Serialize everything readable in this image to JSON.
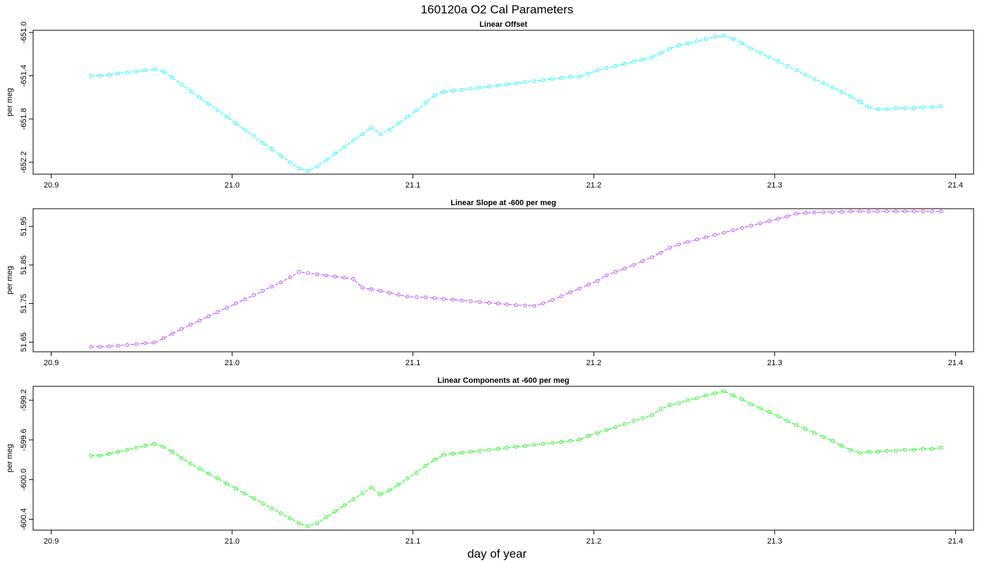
{
  "figure": {
    "title": "160120a   O2 Cal Parameters",
    "xlabel": "day of year"
  },
  "chart_data": [
    {
      "type": "line",
      "title": "Linear Offset",
      "ylabel": "per meg",
      "color": "#00ffff",
      "xlim": [
        20.89,
        21.41
      ],
      "ylim": [
        -652.31,
        -650.98
      ],
      "xticks": [
        "20.9",
        "21.0",
        "21.1",
        "21.2",
        "21.3",
        "21.4"
      ],
      "yticks": [
        "-651.0",
        "-651.4",
        "-651.8",
        "-652.2"
      ],
      "series": [
        {
          "x": [
            20.922,
            20.927,
            20.932,
            20.937,
            20.942,
            20.947,
            20.952,
            20.957,
            20.962,
            20.967,
            20.972,
            20.977,
            20.982,
            20.987,
            20.992,
            20.997,
            21.002,
            21.007,
            21.012,
            21.017,
            21.022,
            21.027,
            21.032,
            21.037,
            21.042,
            21.047,
            21.052,
            21.057,
            21.062,
            21.067,
            21.072,
            21.077,
            21.082,
            21.087,
            21.092,
            21.097,
            21.102,
            21.107,
            21.112,
            21.117,
            21.122,
            21.127,
            21.132,
            21.137,
            21.142,
            21.147,
            21.152,
            21.157,
            21.162,
            21.167,
            21.172,
            21.177,
            21.182,
            21.187,
            21.192,
            21.197,
            21.202,
            21.207,
            21.212,
            21.217,
            21.222,
            21.227,
            21.232,
            21.237,
            21.242,
            21.247,
            21.252,
            21.257,
            21.262,
            21.267,
            21.272,
            21.277,
            21.282,
            21.287,
            21.292,
            21.297,
            21.302,
            21.307,
            21.312,
            21.317,
            21.322,
            21.327,
            21.332,
            21.337,
            21.342,
            21.347,
            21.352,
            21.357,
            21.362,
            21.367,
            21.372,
            21.377,
            21.382,
            21.387,
            21.392
          ],
          "y": [
            -651.4,
            -651.4,
            -651.39,
            -651.38,
            -651.37,
            -651.36,
            -651.35,
            -651.34,
            -651.36,
            -651.42,
            -651.48,
            -651.54,
            -651.6,
            -651.66,
            -651.72,
            -651.78,
            -651.84,
            -651.9,
            -651.96,
            -652.02,
            -652.08,
            -652.14,
            -652.2,
            -652.26,
            -652.28,
            -652.24,
            -652.18,
            -652.12,
            -652.06,
            -652.0,
            -651.94,
            -651.88,
            -651.94,
            -651.9,
            -651.84,
            -651.78,
            -651.72,
            -651.65,
            -651.58,
            -651.55,
            -651.54,
            -651.53,
            -651.52,
            -651.51,
            -651.5,
            -651.49,
            -651.48,
            -651.47,
            -651.46,
            -651.45,
            -651.44,
            -651.43,
            -651.42,
            -651.41,
            -651.41,
            -651.38,
            -651.35,
            -651.33,
            -651.31,
            -651.29,
            -651.27,
            -651.25,
            -651.23,
            -651.19,
            -651.15,
            -651.12,
            -651.1,
            -651.08,
            -651.06,
            -651.04,
            -651.03,
            -651.06,
            -651.1,
            -651.15,
            -651.19,
            -651.23,
            -651.27,
            -651.31,
            -651.35,
            -651.39,
            -651.43,
            -651.47,
            -651.51,
            -651.55,
            -651.59,
            -651.64,
            -651.69,
            -651.71,
            -651.71,
            -651.7,
            -651.7,
            -651.7,
            -651.69,
            -651.69,
            -651.68
          ]
        }
      ]
    },
    {
      "type": "line",
      "title": "Linear Slope at -600 per meg",
      "ylabel": "per meg",
      "color": "#c040ff",
      "xlim": [
        20.89,
        21.41
      ],
      "ylim": [
        51.625,
        51.996
      ],
      "xticks": [
        "20.9",
        "21.0",
        "21.1",
        "21.2",
        "21.3",
        "21.4"
      ],
      "yticks": [
        "51.95",
        "51.85",
        "51.75",
        "51.65"
      ],
      "series": [
        {
          "x": [
            20.922,
            20.927,
            20.932,
            20.937,
            20.942,
            20.947,
            20.952,
            20.957,
            20.962,
            20.967,
            20.972,
            20.977,
            20.982,
            20.987,
            20.992,
            20.997,
            21.002,
            21.007,
            21.012,
            21.017,
            21.022,
            21.027,
            21.032,
            21.037,
            21.042,
            21.047,
            21.052,
            21.057,
            21.062,
            21.067,
            21.072,
            21.077,
            21.082,
            21.087,
            21.092,
            21.097,
            21.102,
            21.107,
            21.112,
            21.117,
            21.122,
            21.127,
            21.132,
            21.137,
            21.142,
            21.147,
            21.152,
            21.157,
            21.162,
            21.167,
            21.172,
            21.177,
            21.182,
            21.187,
            21.192,
            21.197,
            21.202,
            21.207,
            21.212,
            21.217,
            21.222,
            21.227,
            21.232,
            21.237,
            21.242,
            21.247,
            21.252,
            21.257,
            21.262,
            21.267,
            21.272,
            21.277,
            21.282,
            21.287,
            21.292,
            21.297,
            21.302,
            21.307,
            21.312,
            21.317,
            21.322,
            21.327,
            21.332,
            21.337,
            21.342,
            21.347,
            21.352,
            21.357,
            21.362,
            21.367,
            21.372,
            21.377,
            21.382,
            21.387,
            21.392
          ],
          "y": [
            51.638,
            51.638,
            51.639,
            51.641,
            51.643,
            51.645,
            51.647,
            51.649,
            51.66,
            51.672,
            51.684,
            51.695,
            51.706,
            51.717,
            51.728,
            51.739,
            51.75,
            51.761,
            51.772,
            51.783,
            51.794,
            51.805,
            51.818,
            51.832,
            51.829,
            51.826,
            51.823,
            51.82,
            51.817,
            51.814,
            51.791,
            51.787,
            51.783,
            51.778,
            51.773,
            51.768,
            51.767,
            51.766,
            51.764,
            51.762,
            51.76,
            51.758,
            51.756,
            51.754,
            51.752,
            51.75,
            51.748,
            51.746,
            51.745,
            51.744,
            51.751,
            51.759,
            51.769,
            51.779,
            51.789,
            51.799,
            51.809,
            51.823,
            51.832,
            51.841,
            51.85,
            51.86,
            51.87,
            51.882,
            51.895,
            51.903,
            51.91,
            51.916,
            51.922,
            51.928,
            51.934,
            51.94,
            51.946,
            51.952,
            51.958,
            51.964,
            51.97,
            51.976,
            51.983,
            51.985,
            51.986,
            51.987,
            51.987,
            51.988,
            51.989,
            51.989,
            51.989,
            51.989,
            51.989,
            51.989,
            51.989,
            51.989,
            51.989,
            51.989,
            51.989
          ]
        }
      ]
    },
    {
      "type": "line",
      "title": "Linear Components at -600 per meg",
      "ylabel": "per meg",
      "color": "#00ff00",
      "xlim": [
        20.89,
        21.41
      ],
      "ylim": [
        -600.51,
        -599.06
      ],
      "xticks": [
        "20.9",
        "21.0",
        "21.1",
        "21.2",
        "21.3",
        "21.4"
      ],
      "yticks": [
        "-599.2",
        "-599.6",
        "-600.0",
        "-600.4"
      ],
      "series": [
        {
          "x": [
            20.922,
            20.927,
            20.932,
            20.937,
            20.942,
            20.947,
            20.952,
            20.957,
            20.962,
            20.967,
            20.972,
            20.977,
            20.982,
            20.987,
            20.992,
            20.997,
            21.002,
            21.007,
            21.012,
            21.017,
            21.022,
            21.027,
            21.032,
            21.037,
            21.042,
            21.047,
            21.052,
            21.057,
            21.062,
            21.067,
            21.072,
            21.077,
            21.082,
            21.087,
            21.092,
            21.097,
            21.102,
            21.107,
            21.112,
            21.117,
            21.122,
            21.127,
            21.132,
            21.137,
            21.142,
            21.147,
            21.152,
            21.157,
            21.162,
            21.167,
            21.172,
            21.177,
            21.182,
            21.187,
            21.192,
            21.197,
            21.202,
            21.207,
            21.212,
            21.217,
            21.222,
            21.227,
            21.232,
            21.237,
            21.242,
            21.247,
            21.252,
            21.257,
            21.262,
            21.267,
            21.272,
            21.277,
            21.282,
            21.287,
            21.292,
            21.297,
            21.302,
            21.307,
            21.312,
            21.317,
            21.322,
            21.327,
            21.332,
            21.337,
            21.342,
            21.347,
            21.352,
            21.357,
            21.362,
            21.367,
            21.372,
            21.377,
            21.382,
            21.387,
            21.392
          ],
          "y": [
            -599.76,
            -599.76,
            -599.74,
            -599.72,
            -599.7,
            -599.68,
            -599.66,
            -599.64,
            -599.67,
            -599.72,
            -599.78,
            -599.84,
            -599.89,
            -599.94,
            -599.99,
            -600.04,
            -600.09,
            -600.14,
            -600.19,
            -600.24,
            -600.29,
            -600.34,
            -600.39,
            -600.44,
            -600.47,
            -600.44,
            -600.38,
            -600.32,
            -600.26,
            -600.2,
            -600.14,
            -600.08,
            -600.15,
            -600.11,
            -600.05,
            -599.99,
            -599.93,
            -599.86,
            -599.8,
            -599.75,
            -599.74,
            -599.73,
            -599.72,
            -599.71,
            -599.7,
            -599.69,
            -599.68,
            -599.67,
            -599.66,
            -599.65,
            -599.64,
            -599.63,
            -599.62,
            -599.61,
            -599.6,
            -599.56,
            -599.53,
            -599.5,
            -599.47,
            -599.44,
            -599.41,
            -599.38,
            -599.35,
            -599.29,
            -599.25,
            -599.23,
            -599.2,
            -599.18,
            -599.15,
            -599.13,
            -599.11,
            -599.15,
            -599.19,
            -599.24,
            -599.28,
            -599.32,
            -599.36,
            -599.41,
            -599.45,
            -599.49,
            -599.53,
            -599.57,
            -599.61,
            -599.66,
            -599.7,
            -599.73,
            -599.72,
            -599.72,
            -599.71,
            -599.71,
            -599.7,
            -599.7,
            -599.69,
            -599.69,
            -599.68
          ]
        }
      ]
    }
  ]
}
